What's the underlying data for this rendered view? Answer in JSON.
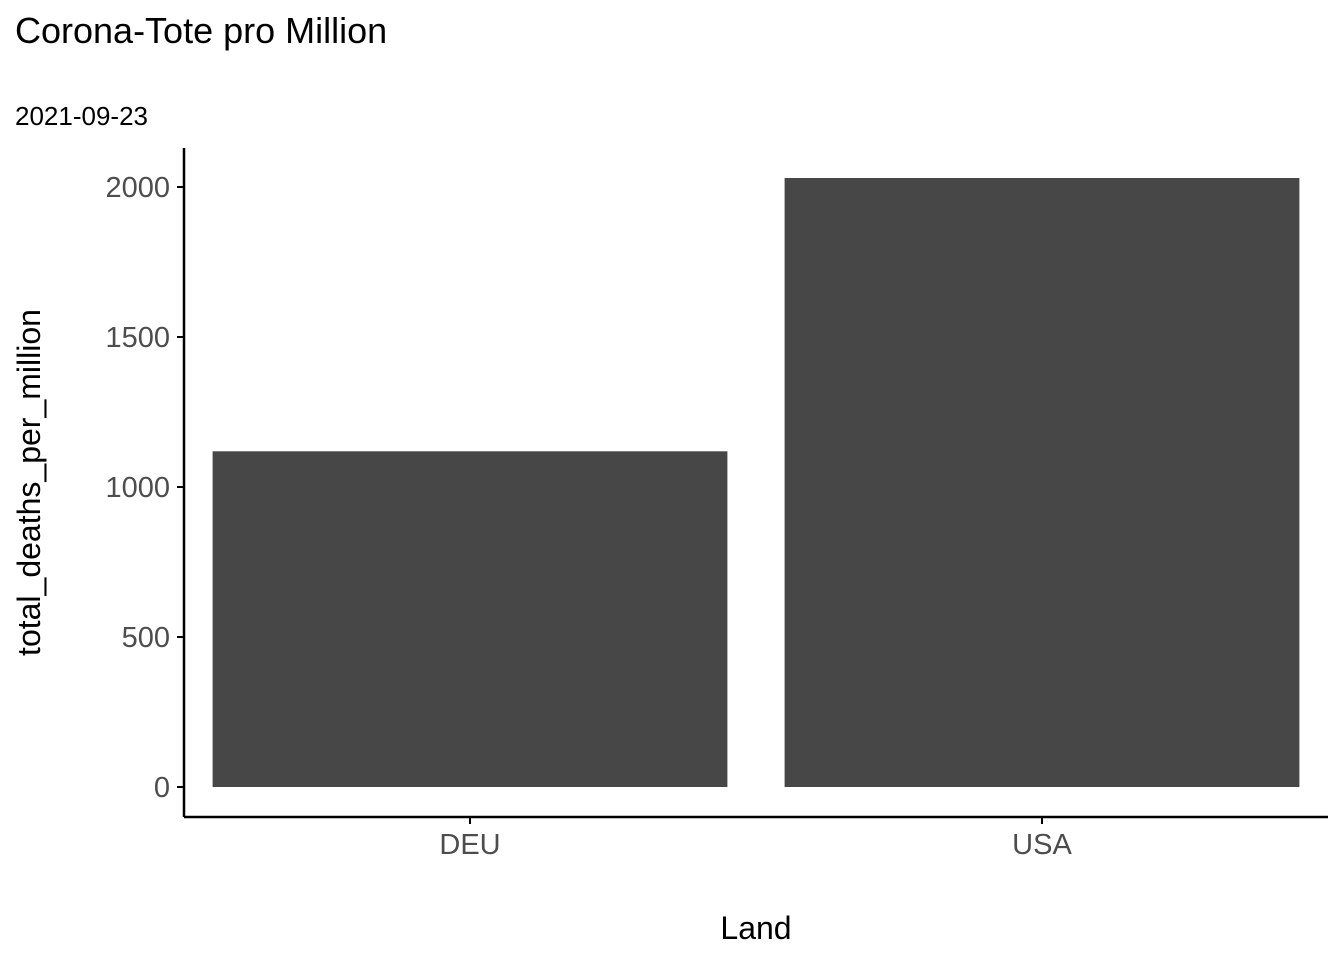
{
  "chart_data": {
    "type": "bar",
    "title": "Corona-Tote pro Million",
    "subtitle": "2021-09-23",
    "xlabel": "Land",
    "ylabel": "total_deaths_per_million",
    "categories": [
      "DEU",
      "USA"
    ],
    "values": [
      1119,
      2030
    ],
    "ylim": [
      -100,
      2130
    ],
    "yticks": [
      0,
      500,
      1000,
      1500,
      2000
    ],
    "grid": false,
    "bar_color": "#474747"
  }
}
